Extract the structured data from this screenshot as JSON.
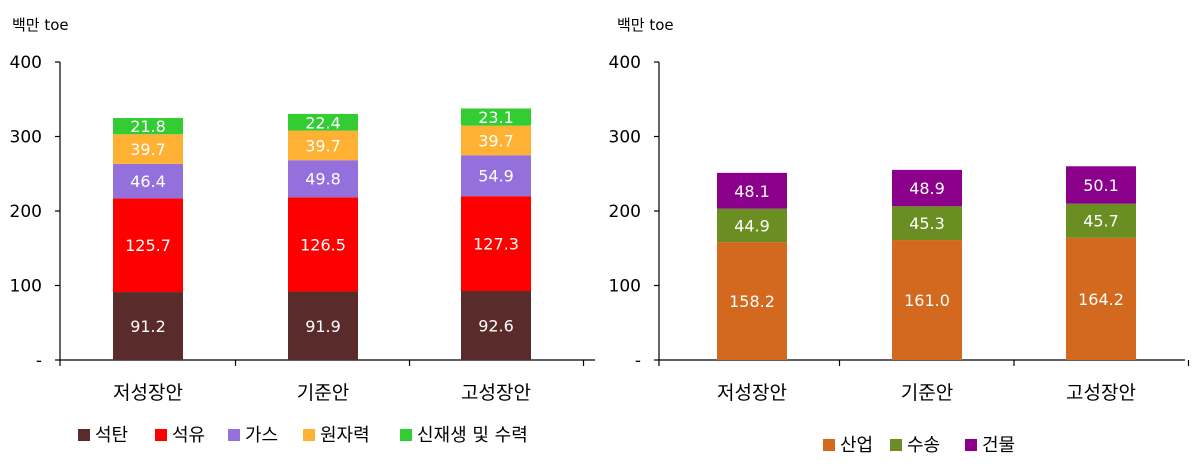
{
  "chart_data": [
    {
      "type": "bar",
      "stacked": true,
      "unit": "백만 toe",
      "categories": [
        "저성장안",
        "기준안",
        "고성장안"
      ],
      "yticks": [
        "-",
        "100",
        "200",
        "300",
        "400"
      ],
      "ylim": [
        0,
        400
      ],
      "legend_position": "bottom",
      "series": [
        {
          "name": "석탄",
          "color": "#5a2b2b",
          "values": [
            91.2,
            91.9,
            92.6
          ],
          "labels": [
            "91.2",
            "91.9",
            "92.6"
          ]
        },
        {
          "name": "석유",
          "color": "#ff0000",
          "values": [
            125.7,
            126.5,
            127.3
          ],
          "labels": [
            "125.7",
            "126.5",
            "127.3"
          ]
        },
        {
          "name": "가스",
          "color": "#9370db",
          "values": [
            46.4,
            49.8,
            54.9
          ],
          "labels": [
            "46.4",
            "49.8",
            "54.9"
          ]
        },
        {
          "name": "원자력",
          "color": "#ffb133",
          "values": [
            39.7,
            39.7,
            39.7
          ],
          "labels": [
            "39.7",
            "39.7",
            "39.7"
          ]
        },
        {
          "name": "신재생 및 수력",
          "color": "#33cc33",
          "values": [
            21.8,
            22.4,
            23.1
          ],
          "labels": [
            "21.8",
            "22.4",
            "23.1"
          ]
        }
      ]
    },
    {
      "type": "bar",
      "stacked": true,
      "unit": "백만 toe",
      "categories": [
        "저성장안",
        "기준안",
        "고성장안"
      ],
      "yticks": [
        "-",
        "100",
        "200",
        "300",
        "400"
      ],
      "ylim": [
        0,
        400
      ],
      "legend_position": "bottom",
      "series": [
        {
          "name": "산업",
          "color": "#d2691e",
          "values": [
            158.2,
            161.0,
            164.2
          ],
          "labels": [
            "158.2",
            "161.0",
            "164.2"
          ]
        },
        {
          "name": "수송",
          "color": "#6b8e23",
          "values": [
            44.9,
            45.3,
            45.7
          ],
          "labels": [
            "44.9",
            "45.3",
            "45.7"
          ]
        },
        {
          "name": "건물",
          "color": "#8b008b",
          "values": [
            48.1,
            48.9,
            50.1
          ],
          "labels": [
            "48.1",
            "48.9",
            "50.1"
          ]
        }
      ]
    }
  ]
}
